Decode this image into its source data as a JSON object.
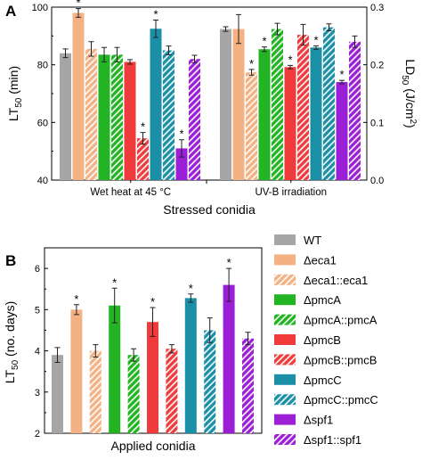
{
  "colors": {
    "WT": "#a6a6a6",
    "eca1": "#f4b183",
    "pmcA": "#22b422",
    "pmcB": "#ef3b3b",
    "pmcC": "#1a8fa6",
    "spf1": "#9b1fd6"
  },
  "legend": [
    {
      "label": "WT",
      "color": "WT",
      "hatched": false
    },
    {
      "label": "Δeca1",
      "color": "eca1",
      "hatched": false
    },
    {
      "label": "Δeca1::eca1",
      "color": "eca1",
      "hatched": true
    },
    {
      "label": "ΔpmcA",
      "color": "pmcA",
      "hatched": false
    },
    {
      "label": "ΔpmcA::pmcA",
      "color": "pmcA",
      "hatched": true
    },
    {
      "label": "ΔpmcB",
      "color": "pmcB",
      "hatched": false
    },
    {
      "label": "ΔpmcB::pmcB",
      "color": "pmcB",
      "hatched": true
    },
    {
      "label": "ΔpmcC",
      "color": "pmcC",
      "hatched": false
    },
    {
      "label": "ΔpmcC::pmcC",
      "color": "pmcC",
      "hatched": true
    },
    {
      "label": "Δspf1",
      "color": "spf1",
      "hatched": false
    },
    {
      "label": "Δspf1::spf1",
      "color": "spf1",
      "hatched": true
    }
  ],
  "chart_data": [
    {
      "panel": "A",
      "type": "bar",
      "xlabel": "Stressed conidia",
      "ylabel_left": "LT50 (min)",
      "ylabel_right": "LD50 (J/cm2)",
      "ylim_left": [
        40,
        100
      ],
      "ylim_right": [
        0,
        0.3
      ],
      "yticks_left": [
        "40",
        "60",
        "80",
        "100"
      ],
      "yticks_right": [
        "0.0",
        "0.1",
        "0.2",
        "0.3"
      ],
      "groups": [
        {
          "name": "Wet heat at 45 °C",
          "axis": "left",
          "values": [
            84,
            98,
            85.5,
            83.5,
            83.5,
            81,
            54.5,
            92.5,
            85,
            51,
            82
          ],
          "errors": [
            1.5,
            1.5,
            2.5,
            2.5,
            2.5,
            0.8,
            2,
            3,
            1.5,
            3,
            1.3
          ],
          "significant": [
            false,
            true,
            false,
            false,
            false,
            false,
            true,
            true,
            false,
            true,
            false
          ]
        },
        {
          "name": "UV-B irradiation",
          "axis": "right",
          "values": [
            0.262,
            0.262,
            0.187,
            0.227,
            0.262,
            0.196,
            0.252,
            0.23,
            0.265,
            0.17,
            0.24
          ],
          "errors": [
            0.004,
            0.025,
            0.005,
            0.004,
            0.01,
            0.003,
            0.018,
            0.003,
            0.006,
            0.003,
            0.01
          ],
          "significant": [
            false,
            false,
            true,
            true,
            false,
            true,
            false,
            true,
            false,
            true,
            false
          ]
        }
      ]
    },
    {
      "panel": "B",
      "type": "bar",
      "xlabel": "Applied conidia",
      "ylabel": "LT50 (no. days)",
      "ylim": [
        2,
        6.5
      ],
      "yticks": [
        "2",
        "3",
        "4",
        "5",
        "6"
      ],
      "series": [
        "WT",
        "Δeca1",
        "Δeca1::eca1",
        "ΔpmcA",
        "ΔpmcA::pmcA",
        "ΔpmcB",
        "ΔpmcB::pmcB",
        "ΔpmcC",
        "ΔpmcC::pmcC",
        "Δspf1",
        "Δspf1::spf1"
      ],
      "values": [
        3.9,
        5.0,
        4.0,
        5.1,
        3.9,
        4.7,
        4.05,
        5.28,
        4.5,
        5.6,
        4.3
      ],
      "errors": [
        0.18,
        0.12,
        0.15,
        0.42,
        0.15,
        0.35,
        0.1,
        0.1,
        0.3,
        0.4,
        0.15
      ],
      "significant": [
        false,
        true,
        false,
        true,
        false,
        true,
        false,
        true,
        false,
        true,
        false
      ]
    }
  ]
}
